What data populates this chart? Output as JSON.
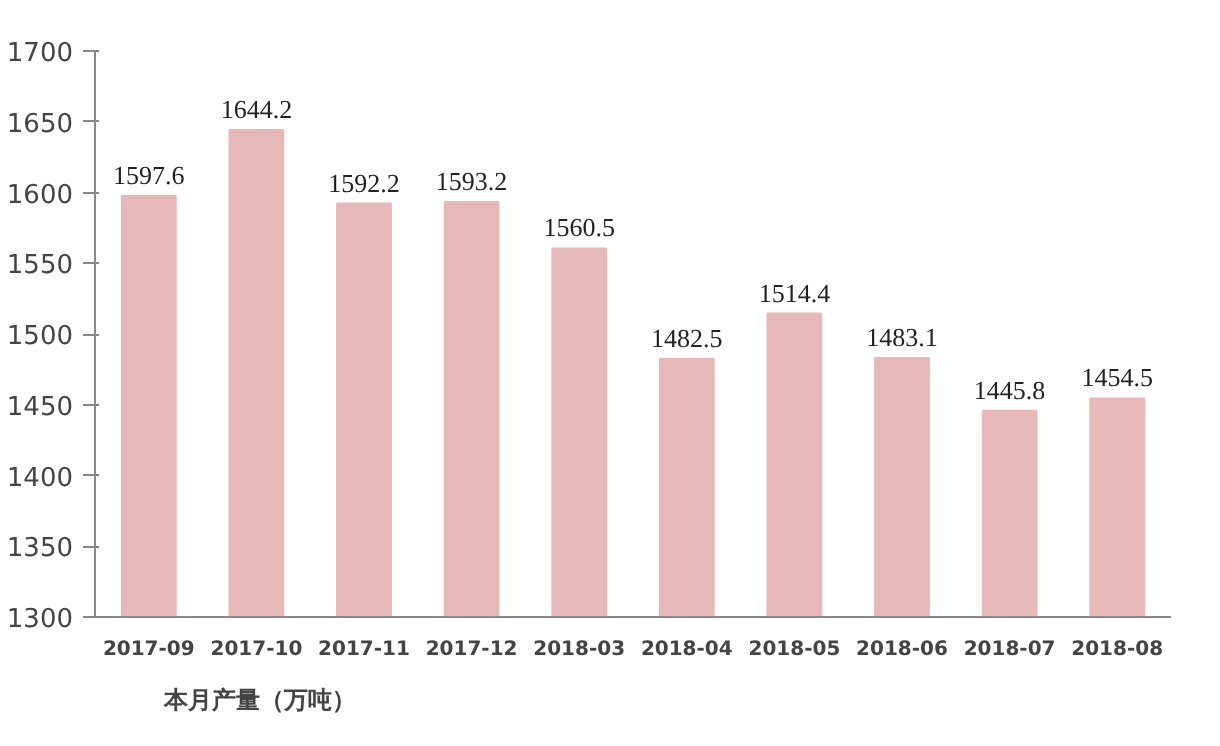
{
  "chart_data": {
    "type": "bar",
    "categories": [
      "2017-09",
      "2017-10",
      "2017-11",
      "2017-12",
      "2018-03",
      "2018-04",
      "2018-05",
      "2018-06",
      "2018-07",
      "2018-08"
    ],
    "series": [
      {
        "name": "本月产量（万吨）",
        "color": "#e6b9b8",
        "values": [
          1597.6,
          1644.2,
          1592.2,
          1593.2,
          1560.5,
          1482.5,
          1514.4,
          1483.1,
          1445.8,
          1454.5
        ]
      }
    ],
    "ylim": [
      1300,
      1700
    ],
    "yticks": [
      1300,
      1350,
      1400,
      1450,
      1500,
      1550,
      1600,
      1650,
      1700
    ],
    "data_labels": true,
    "legend": "bottom",
    "grid": false
  }
}
